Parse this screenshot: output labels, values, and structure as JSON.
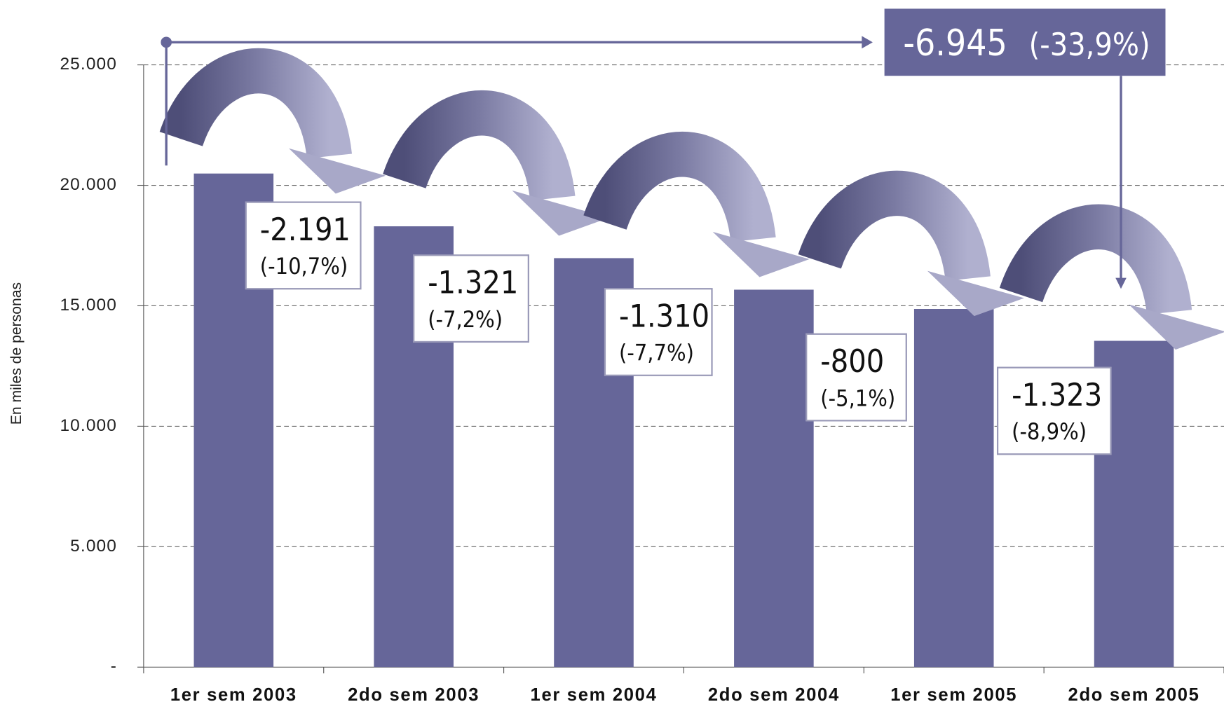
{
  "chart_data": {
    "type": "bar",
    "y_axis_label": "En miles de personas",
    "categories": [
      "1er sem 2003",
      "2do sem 2003",
      "1er sem 2004",
      "2do sem 2004",
      "1er sem 2005",
      "2do sem 2005"
    ],
    "values": [
      20490,
      18299,
      16978,
      15668,
      14868,
      13545
    ],
    "color": "#666699",
    "ylim": [
      0,
      25000
    ],
    "yticks": [
      {
        "value": 0,
        "label": "-"
      },
      {
        "value": 5000,
        "label": "5.000"
      },
      {
        "value": 10000,
        "label": "10.000"
      },
      {
        "value": 15000,
        "label": "15.000"
      },
      {
        "value": 20000,
        "label": "20.000"
      },
      {
        "value": 25000,
        "label": "25.000"
      }
    ],
    "grid": true,
    "annotations": [
      {
        "text": "-2.191",
        "sub": "(-10,7%)"
      },
      {
        "text": "-1.321",
        "sub": "(-7,2%)"
      },
      {
        "text": "-1.310",
        "sub": "(-7,7%)"
      },
      {
        "text": "-800",
        "sub": "(-5,1%)"
      },
      {
        "text": "-1.323",
        "sub": "(-8,9%)"
      }
    ],
    "total": {
      "text": "-6.945",
      "sub": "(-33,9%)"
    }
  }
}
